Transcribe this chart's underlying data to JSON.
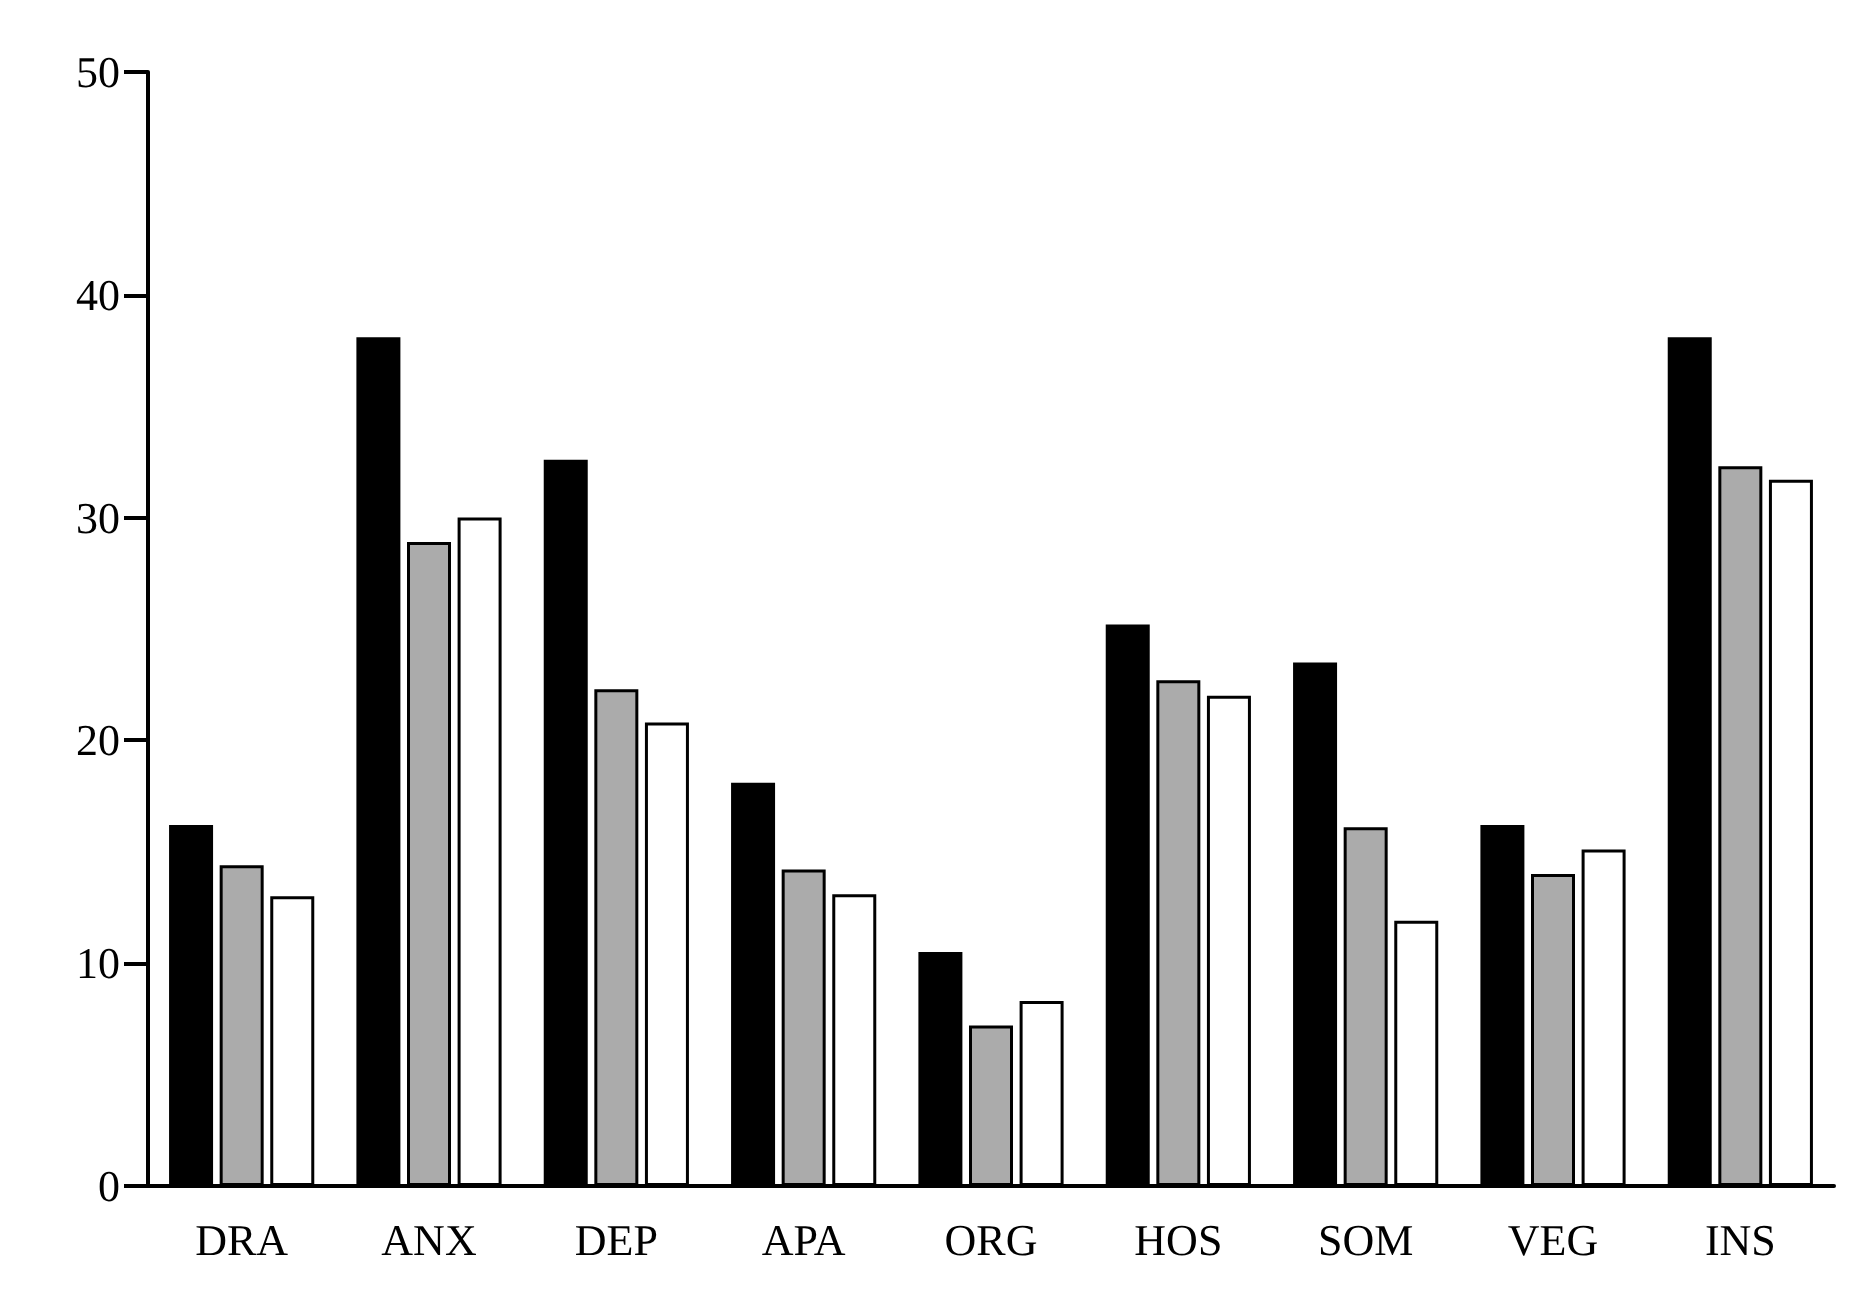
{
  "chart_data": {
    "type": "bar",
    "categories": [
      "DRA",
      "ANX",
      "DEP",
      "APA",
      "ORG",
      "HOS",
      "SOM",
      "VEG",
      "INS"
    ],
    "series": [
      {
        "color": "#000000",
        "values": [
          16.2,
          38.1,
          32.6,
          18.1,
          10.5,
          25.2,
          23.5,
          16.2,
          38.1
        ]
      },
      {
        "color": "#ababab",
        "values": [
          14.4,
          28.9,
          22.3,
          14.2,
          7.2,
          22.7,
          16.1,
          14.0,
          32.3
        ]
      },
      {
        "color": "#ffffff",
        "values": [
          13.0,
          30.0,
          20.8,
          13.1,
          8.3,
          22.0,
          11.9,
          15.1,
          31.7
        ]
      }
    ],
    "ylim": [
      0,
      50
    ],
    "yticks": [
      0,
      10,
      20,
      30,
      40,
      50
    ],
    "grid": false
  }
}
